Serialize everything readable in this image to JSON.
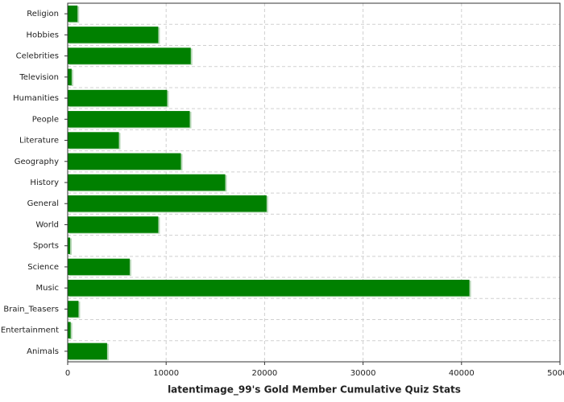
{
  "chart_data": {
    "type": "barh",
    "title": "latentimage_99's Gold Member Cumulative Quiz Stats",
    "categories": [
      "Religion",
      "Hobbies",
      "Celebrities",
      "Television",
      "Humanities",
      "People",
      "Literature",
      "Geography",
      "History",
      "General",
      "World",
      "Sports",
      "Science",
      "Music",
      "Brain_Teasers",
      "Entertainment",
      "Animals"
    ],
    "values": [
      1000,
      9200,
      12500,
      400,
      10100,
      12400,
      5200,
      11500,
      16000,
      20200,
      9200,
      250,
      6300,
      40800,
      1100,
      300,
      4000
    ],
    "color": "#008000",
    "xlim": [
      0,
      50000
    ],
    "xticks": [
      0,
      10000,
      20000,
      30000,
      40000,
      50000
    ],
    "grid": true
  }
}
